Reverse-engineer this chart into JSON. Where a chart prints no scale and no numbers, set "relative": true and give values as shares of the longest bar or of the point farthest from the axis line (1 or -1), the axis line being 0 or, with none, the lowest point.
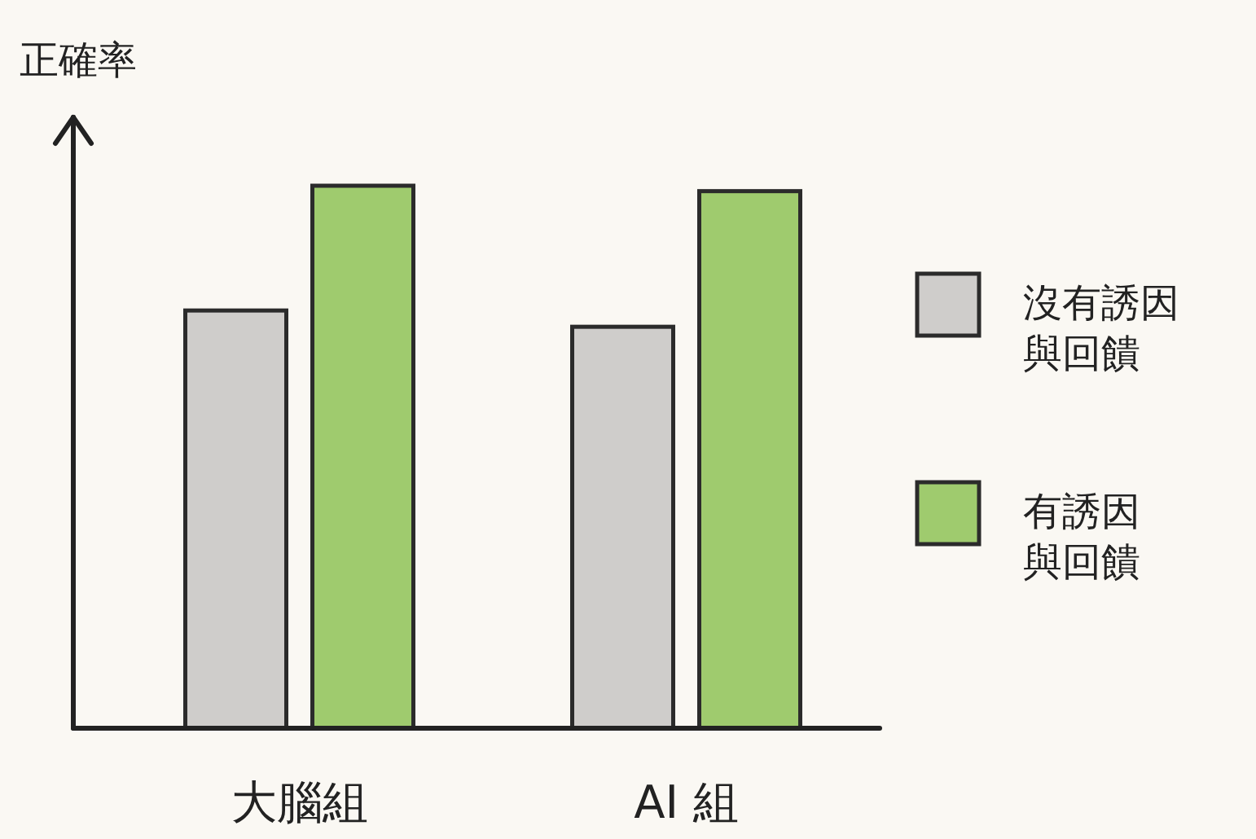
{
  "chart_data": {
    "type": "bar",
    "relative": true,
    "ylabel": "正確率",
    "categories": [
      "大腦組",
      "AI 組"
    ],
    "legend": "right",
    "series": [
      {
        "name": "沒有誘因與回饋",
        "color": "#cfcdcb",
        "values": [
          0.77,
          0.74
        ]
      },
      {
        "name": "有誘因與回饋",
        "color": "#9fcb6e",
        "values": [
          1,
          0.99
        ]
      }
    ]
  }
}
